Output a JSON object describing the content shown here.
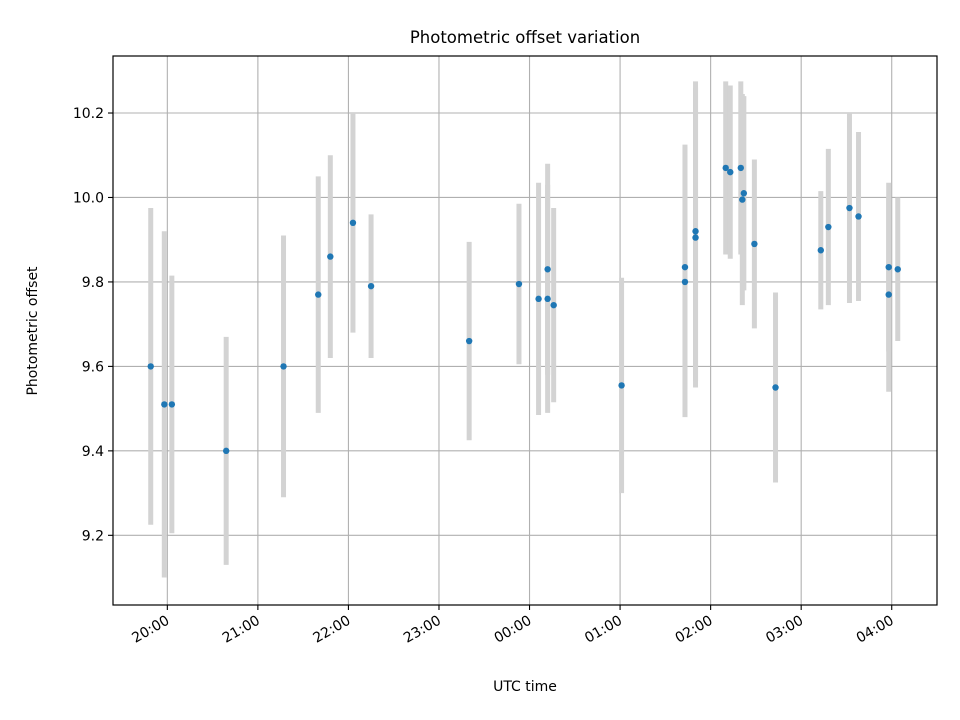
{
  "chart_data": {
    "type": "scatter",
    "title": "Photometric offset variation",
    "xlabel": "UTC time",
    "ylabel": "Photometric offset",
    "x_type": "time",
    "x_start": "19:30",
    "xlim": [
      "19:24",
      "04:30"
    ],
    "ylim": [
      9.035,
      10.335
    ],
    "x_ticks": [
      "20:00",
      "21:00",
      "22:00",
      "23:00",
      "00:00",
      "01:00",
      "02:00",
      "03:00",
      "04:00"
    ],
    "y_ticks": [
      9.2,
      9.4,
      9.6,
      9.8,
      10.0,
      10.2
    ],
    "y_tick_labels": [
      "9.2",
      "9.4",
      "9.6",
      "9.8",
      "10.0",
      "10.2"
    ],
    "grid": true,
    "point_color": "#1f77b4",
    "errorbar_color": "#d3d3d3",
    "points": [
      {
        "t": "19:49",
        "y": 9.6,
        "yerr": 0.375
      },
      {
        "t": "19:58",
        "y": 9.51,
        "yerr": 0.41
      },
      {
        "t": "20:03",
        "y": 9.51,
        "yerr": 0.305
      },
      {
        "t": "20:39",
        "y": 9.4,
        "yerr": 0.27
      },
      {
        "t": "21:17",
        "y": 9.6,
        "yerr": 0.31
      },
      {
        "t": "21:40",
        "y": 9.77,
        "yerr": 0.28
      },
      {
        "t": "21:48",
        "y": 9.86,
        "yerr": 0.24
      },
      {
        "t": "22:03",
        "y": 9.94,
        "yerr": 0.26
      },
      {
        "t": "22:15",
        "y": 9.79,
        "yerr": 0.17
      },
      {
        "t": "23:20",
        "y": 9.66,
        "yerr": 0.235
      },
      {
        "t": "23:53",
        "y": 9.795,
        "yerr": 0.19
      },
      {
        "t": "00:06",
        "y": 9.76,
        "yerr": 0.275
      },
      {
        "t": "00:12",
        "y": 9.76,
        "yerr": 0.27
      },
      {
        "t": "00:12",
        "y": 9.83,
        "yerr": 0.25
      },
      {
        "t": "00:16",
        "y": 9.745,
        "yerr": 0.23
      },
      {
        "t": "01:01",
        "y": 9.555,
        "yerr": 0.255
      },
      {
        "t": "01:43",
        "y": 9.835,
        "yerr": 0.29
      },
      {
        "t": "01:43",
        "y": 9.8,
        "yerr": 0.32
      },
      {
        "t": "01:50",
        "y": 9.92,
        "yerr": 0.355
      },
      {
        "t": "01:50",
        "y": 9.905,
        "yerr": 0.355
      },
      {
        "t": "02:10",
        "y": 10.07,
        "yerr": 0.205
      },
      {
        "t": "02:13",
        "y": 10.06,
        "yerr": 0.205
      },
      {
        "t": "02:20",
        "y": 10.07,
        "yerr": 0.205
      },
      {
        "t": "02:21",
        "y": 9.995,
        "yerr": 0.25
      },
      {
        "t": "02:22",
        "y": 10.01,
        "yerr": 0.23
      },
      {
        "t": "02:29",
        "y": 9.89,
        "yerr": 0.2
      },
      {
        "t": "02:43",
        "y": 9.55,
        "yerr": 0.225
      },
      {
        "t": "03:13",
        "y": 9.875,
        "yerr": 0.14
      },
      {
        "t": "03:18",
        "y": 9.93,
        "yerr": 0.185
      },
      {
        "t": "03:32",
        "y": 9.975,
        "yerr": 0.225
      },
      {
        "t": "03:38",
        "y": 9.955,
        "yerr": 0.2
      },
      {
        "t": "03:58",
        "y": 9.835,
        "yerr": 0.2
      },
      {
        "t": "03:58",
        "y": 9.77,
        "yerr": 0.23
      },
      {
        "t": "04:04",
        "y": 9.83,
        "yerr": 0.17
      }
    ]
  }
}
